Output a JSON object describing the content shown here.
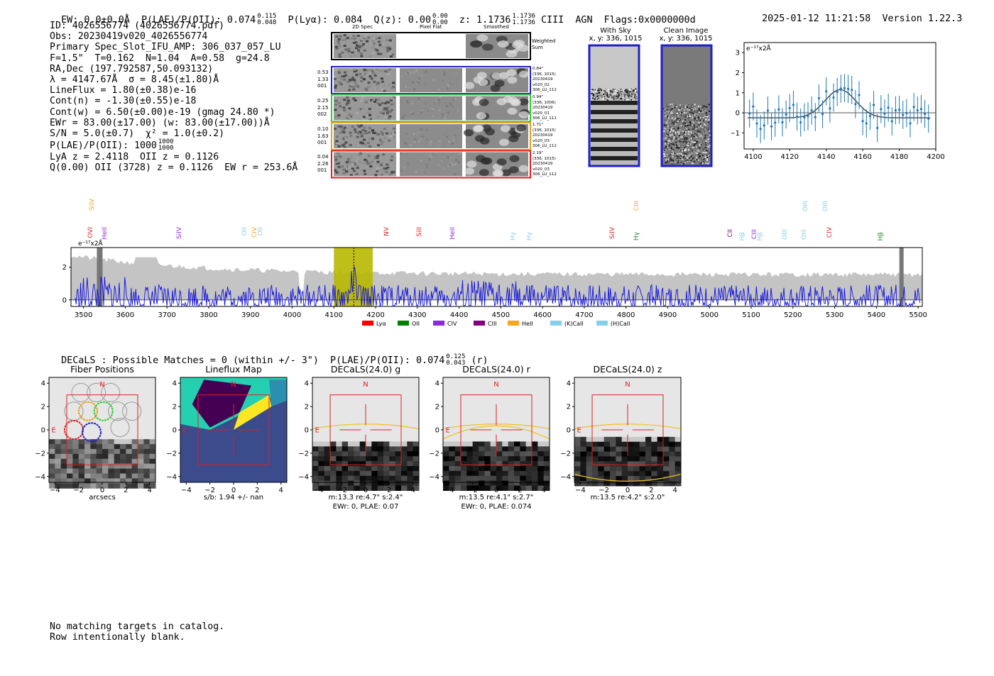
{
  "header": {
    "ew": "EW: 0.0±0.0Å",
    "plae_label": "P(LAE)/P(OII): 0.074",
    "plae_hi": "0.115",
    "plae_lo": "0.048",
    "plya": "P(Lyα): 0.084",
    "qz_label": "Q(z): 0.00",
    "qz_hi": "0.00",
    "qz_lo": "0.00",
    "z_label": "z: 1.1736",
    "z_hi": "1.1736",
    "z_lo": "1.1736",
    "line_name": "CIII",
    "agn": "AGN",
    "flags": "Flags:0x0000000d",
    "timestamp": "2025-01-12 11:21:58",
    "version": "Version 1.22.3"
  },
  "info": {
    "lines": [
      "ID: 4026556774 (4026556774.pdf)",
      "Obs: 20230419v020_4026556774",
      "Primary Spec_Slot_IFU_AMP: 306_037_057_LU",
      "F=1.5\"  T=0.162  N=1.04  A=0.58  g=24.8",
      "RA,Dec (197.792587,50.093132)",
      "λ = 4147.67Å  σ = 8.45(±1.80)Å",
      "LineFlux = 1.80(±0.38)e-16",
      "Cont(n) = -1.30(±0.55)e-18",
      "Cont(w) = 6.50(±0.00)e-19 (gmag 24.80 *)",
      "EWr = 83.00(±17.00) (w: 83.00(±17.00))Å",
      "S/N = 5.0(±0.7)  χ² = 1.0(±0.2)"
    ],
    "plae2_label": "P(LAE)/P(OII): 1000",
    "plae2_hi": "1000",
    "plae2_lo": "1000",
    "lya_line": "LyA z = 2.4118  OII z = 0.1126",
    "q_line": "Q(0.00) OII (3728) z = 0.1126  EW r = 253.6Å"
  },
  "stamps": {
    "headers": [
      "2D Spec",
      "Pixel Flat",
      "Smoothed"
    ],
    "weighted_label": "Weighted\nSum",
    "rows": [
      {
        "left": "0.53\n1.33\n001",
        "right": "0.84\"\n(336, 1015)\n20230419\nv020_02\n306_LU_112",
        "color": "#1f1fcc"
      },
      {
        "left": "0.25\n2.15\n002",
        "right": "0.94\"\n(336, 1006)\n20230419\nv020_01\n306_LU_111",
        "color": "#33cc33"
      },
      {
        "left": "0.10\n1.63\n001",
        "right": "1.71\"\n(336, 1015)\n20230419\nv020_03\n306_LU_112",
        "color": "#e8a020"
      },
      {
        "left": "0.04\n2.26\n001",
        "right": "2.19\"\n(336, 1015)\n20230419\nv020_03\n306_LU_112",
        "color": "#dd2222"
      }
    ]
  },
  "cutouts": {
    "sky_title": "With Sky",
    "sky_coords": "x, y: 336, 1015",
    "clean_title": "Clean Image",
    "clean_coords": "x, y: 336, 1015"
  },
  "zoom_plot": {
    "unit_label": "e⁻¹⁷x2Å",
    "x_ticks": [
      "4100",
      "4120",
      "4140",
      "4160",
      "4180",
      "4200"
    ],
    "y_ticks": [
      "3",
      "2",
      "1",
      "0",
      "−1"
    ]
  },
  "spectrum": {
    "unit_label": "e⁻¹⁷x2Å",
    "x_ticks": [
      "3500",
      "3600",
      "3700",
      "3800",
      "3900",
      "4000",
      "4100",
      "4200",
      "4300",
      "4400",
      "4500",
      "4600",
      "4700",
      "4800",
      "4900",
      "5000",
      "5100",
      "5200",
      "5300",
      "5400",
      "5500"
    ],
    "y_ticks": [
      "2",
      "0"
    ],
    "line_labels": [
      {
        "text": "SiIV",
        "color": "#f5a623"
      },
      {
        "text": "OVI",
        "color": "#dd2222"
      },
      {
        "text": "HeII",
        "color": "#8a2be2"
      },
      {
        "text": "SiIV",
        "color": "#8a2be2"
      },
      {
        "text": "OII",
        "color": "#87ceeb"
      },
      {
        "text": "CIV",
        "color": "#f5a623"
      },
      {
        "text": "OII",
        "color": "#87ceeb"
      },
      {
        "text": "NV",
        "color": "#dd2222"
      },
      {
        "text": "SiII",
        "color": "#dd2222"
      },
      {
        "text": "HeII",
        "color": "#8a2be2"
      },
      {
        "text": "Hγ",
        "color": "#87ceeb"
      },
      {
        "text": "Hγ",
        "color": "#87ceeb"
      },
      {
        "text": "SiIV",
        "color": "#dd2222"
      },
      {
        "text": "CIII",
        "color": "#f5a623"
      },
      {
        "text": "Hγ",
        "color": "#228b22"
      },
      {
        "text": "CII",
        "color": "#800080"
      },
      {
        "text": "Hβ",
        "color": "#87ceeb"
      },
      {
        "text": "CIII",
        "color": "#8a2be2"
      },
      {
        "text": "Hβ",
        "color": "#87ceeb"
      },
      {
        "text": "OIII",
        "color": "#87ceeb"
      },
      {
        "text": "OIII",
        "color": "#87ceeb"
      },
      {
        "text": "OIII",
        "color": "#87ceeb"
      },
      {
        "text": "OIII",
        "color": "#87ceeb"
      },
      {
        "text": "CIV",
        "color": "#dd2222"
      },
      {
        "text": "Hβ",
        "color": "#228b22"
      }
    ],
    "legend": [
      {
        "label": "Lyα",
        "color": "#ff0000"
      },
      {
        "label": "OII",
        "color": "#008000"
      },
      {
        "label": "CIV",
        "color": "#8a2be2"
      },
      {
        "label": "CIII",
        "color": "#800080"
      },
      {
        "label": "HeII",
        "color": "#f5a623"
      },
      {
        "label": "(K)CaII",
        "color": "#87ceeb"
      },
      {
        "label": "(H)CaII",
        "color": "#87ceeb"
      }
    ]
  },
  "decals": {
    "summary_label": "DECaLS : Possible Matches = 0 (within +/- 3\")  P(LAE)/P(OII): 0.074",
    "summary_hi": "0.125",
    "summary_lo": "0.043",
    "summary_band": "(r)",
    "panels": [
      {
        "title": "Fiber Positions",
        "xlabel": "arcsecs",
        "caption2": ""
      },
      {
        "title": "Lineflux Map",
        "xlabel": "s/b: 1.94 +/- nan",
        "caption2": ""
      },
      {
        "title": "DECaLS(24.0) g",
        "xlabel": "m:13.3  re:4.7\"  s:2.4\"",
        "caption2": "EWr: 0, PLAE: 0.07"
      },
      {
        "title": "DECaLS(24.0) r",
        "xlabel": "m:13.5  re:4.1\"  s:2.7\"",
        "caption2": "EWr: 0, PLAE: 0.074"
      },
      {
        "title": "DECaLS(24.0) z",
        "xlabel": "m:13.5  re:4.2\"  s:2.0\"",
        "caption2": ""
      }
    ],
    "y_ticks": [
      "4",
      "2",
      "0",
      "−2",
      "−4"
    ],
    "x_ticks": [
      "−4",
      "−2",
      "0",
      "2",
      "4"
    ],
    "n_label": "N",
    "e_label": "E"
  },
  "footer": {
    "line1": "No matching targets in catalog.",
    "line2": "Row intentionally blank."
  }
}
